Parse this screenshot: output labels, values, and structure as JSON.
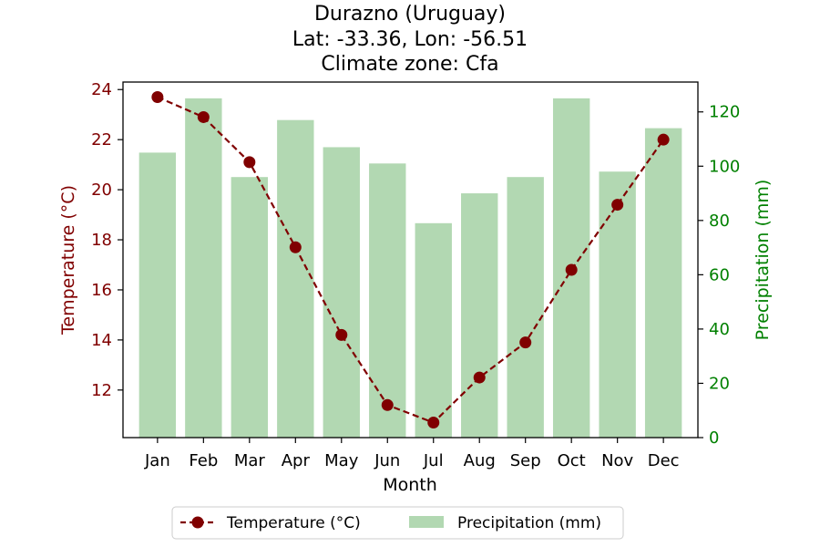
{
  "chart_data": {
    "type": "bar+line",
    "title": [
      "Durazno (Uruguay)",
      "Lat: -33.36, Lon: -56.51",
      "Climate zone: Cfa"
    ],
    "xlabel": "Month",
    "categories": [
      "Jan",
      "Feb",
      "Mar",
      "Apr",
      "May",
      "Jun",
      "Jul",
      "Aug",
      "Sep",
      "Oct",
      "Nov",
      "Dec"
    ],
    "series": [
      {
        "name": "Temperature (°C)",
        "kind": "line",
        "axis": "left",
        "color": "#800000",
        "style": "dashed-with-circle-markers",
        "values": [
          23.7,
          22.9,
          21.1,
          17.7,
          14.2,
          11.4,
          10.7,
          12.5,
          13.9,
          16.8,
          19.4,
          22.0
        ]
      },
      {
        "name": "Precipitation (mm)",
        "kind": "bar",
        "axis": "right",
        "color": "#b2d8b2",
        "values": [
          105,
          125,
          96,
          117,
          107,
          101,
          79,
          90,
          96,
          125,
          98,
          114
        ]
      }
    ],
    "y_left": {
      "label": "Temperature (°C)",
      "color": "#800000",
      "ylim": [
        10.1,
        24.3
      ],
      "ticks": [
        12,
        14,
        16,
        18,
        20,
        22,
        24
      ]
    },
    "y_right": {
      "label": "Precipitation (mm)",
      "color": "#008000",
      "ylim": [
        0,
        131
      ],
      "ticks": [
        0,
        20,
        40,
        60,
        80,
        100,
        120
      ]
    },
    "grid": false,
    "legend": {
      "placement": "bottom-center",
      "entries": [
        "Temperature (°C)",
        "Precipitation (mm)"
      ]
    }
  }
}
